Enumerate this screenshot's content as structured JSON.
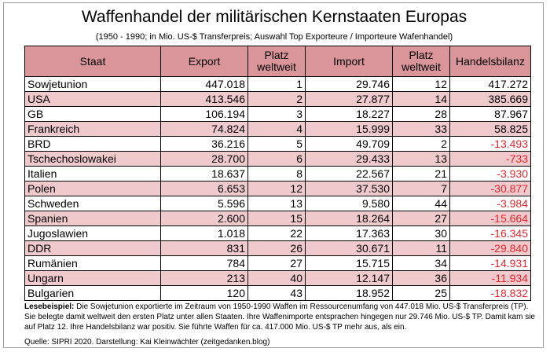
{
  "title": "Waffenhandel der militärischen Kernstaaten Europas",
  "subtitle": "(1950 - 1990; in Mio. US-$ Transferpreis; Auswahl Top Exporteure / Importeure Wafenhandel)",
  "table": {
    "headers": [
      "Staat",
      "Export",
      "Platz weltweit",
      "Import",
      "Platz weltweit",
      "Handelsbilanz"
    ],
    "rows": [
      [
        "Sowjetunion",
        "447.018",
        "1",
        "29.746",
        "12",
        "417.272"
      ],
      [
        "USA",
        "413.546",
        "2",
        "27.877",
        "14",
        "385.669"
      ],
      [
        "GB",
        "106.194",
        "3",
        "18.227",
        "28",
        "87.967"
      ],
      [
        "Frankreich",
        "74.824",
        "4",
        "15.999",
        "33",
        "58.825"
      ],
      [
        "BRD",
        "36.216",
        "5",
        "49.709",
        "2",
        "-13.493"
      ],
      [
        "Tschechoslowakei",
        "28.700",
        "6",
        "29.433",
        "13",
        "-733"
      ],
      [
        "Italien",
        "18.637",
        "8",
        "22.567",
        "21",
        "-3.930"
      ],
      [
        "Polen",
        "6.653",
        "12",
        "37.530",
        "7",
        "-30.877"
      ],
      [
        "Schweden",
        "5.596",
        "13",
        "9.580",
        "44",
        "-3.984"
      ],
      [
        "Spanien",
        "2.600",
        "15",
        "18.264",
        "27",
        "-15.664"
      ],
      [
        "Jugoslawien",
        "1.018",
        "22",
        "17.363",
        "30",
        "-16.345"
      ],
      [
        "DDR",
        "831",
        "26",
        "30.671",
        "11",
        "-29.840"
      ],
      [
        "Rumänien",
        "784",
        "27",
        "15.715",
        "34",
        "-14.931"
      ],
      [
        "Ungarn",
        "213",
        "40",
        "12.147",
        "36",
        "-11.934"
      ],
      [
        "Bulgarien",
        "120",
        "43",
        "18.952",
        "25",
        "-18.832"
      ]
    ]
  },
  "note": {
    "label": "Lesebeispiel:",
    "text": "Die Sowjetunion exportierte im Zeitraum von 1950-1990 Waffen im Ressourcenumfang von 447.018 Mio. US-$ Transferpreis (TP). Sie belegte damit weltweit den ersten Platz unter allen Staaten. Ihre Waffenimporte entsprachen hingegen nur 29.746 Mio. US-$ TP. Damit kam sie auf Platz 12. Ihre Handelsbilanz war positiv. Sie führte Waffen für ca. 417.000 Mio. US-$ TP mehr aus, als ein."
  },
  "source": "Quelle: SIPRI 2020. Darstellung: Kai Kleinwächter (zeitgedanken.blog)",
  "colors": {
    "header_bg": "#d9959a",
    "alt_row_bg": "#efc9cb",
    "negative": "#e8262e"
  }
}
